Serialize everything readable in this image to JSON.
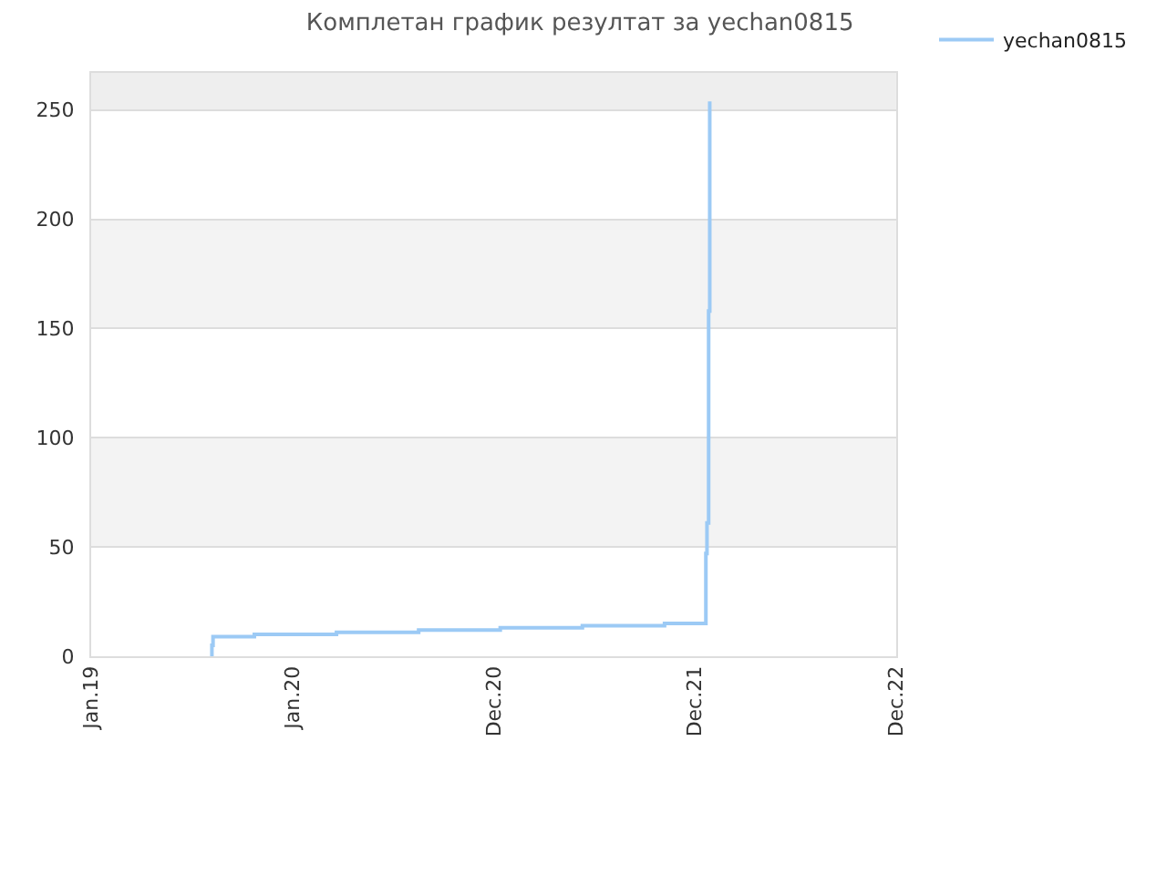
{
  "chart_data": {
    "type": "step",
    "title": "Комплетан график резултат за yechan0815",
    "series": [
      {
        "name": "yechan0815",
        "color": "#9ccaf5",
        "x": [
          "2019-08-07",
          "2019-08-08",
          "2019-08-10",
          "2019-10-24",
          "2020-03-21",
          "2020-08-17",
          "2021-01-12",
          "2021-06-10",
          "2021-11-06",
          "2022-01-20",
          "2022-01-22",
          "2022-01-25",
          "2022-01-27"
        ],
        "values": [
          0,
          5,
          9,
          10,
          11,
          12,
          13,
          14,
          15,
          47,
          61,
          158,
          254
        ]
      }
    ],
    "xlim": [
      "2019-01-01",
      "2022-12-31"
    ],
    "xticks": [
      {
        "value": "2019-01-01",
        "label": "Jan.19"
      },
      {
        "value": "2020-01-01",
        "label": "Jan.20"
      },
      {
        "value": "2020-12-31",
        "label": "Dec.20"
      },
      {
        "value": "2021-12-31",
        "label": "Dec.21"
      },
      {
        "value": "2022-12-31",
        "label": "Dec.22"
      }
    ],
    "ylim": [
      0,
      267
    ],
    "yticks": [
      0,
      50,
      100,
      150,
      200,
      250
    ],
    "bands": [
      {
        "axis": "y",
        "from": 50,
        "to": 100,
        "color": "#f3f3f3"
      },
      {
        "axis": "y",
        "from": 150,
        "to": 200,
        "color": "#f3f3f3"
      },
      {
        "axis": "y",
        "from": 250,
        "to": 267,
        "color": "#eeeeee"
      }
    ],
    "grid": "y",
    "legend": "top right",
    "line_style": "solid"
  }
}
